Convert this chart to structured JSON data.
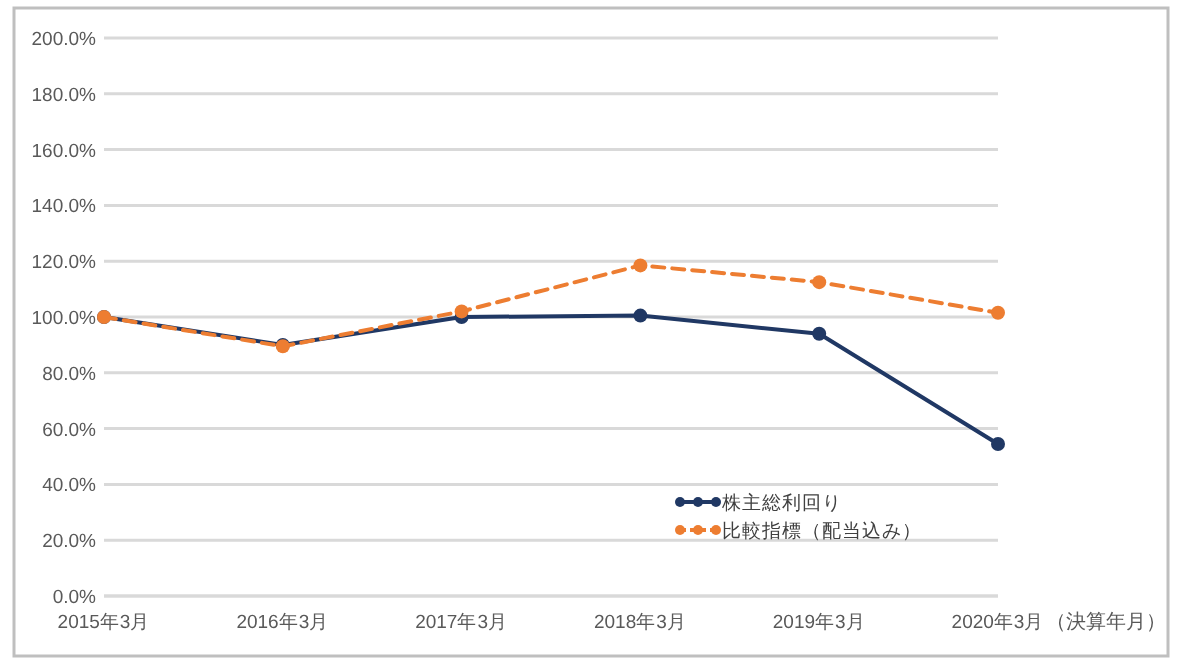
{
  "chart_data": {
    "type": "line",
    "xlabel": "（決算年月）",
    "categories": [
      "2015年3月",
      "2016年3月",
      "2017年3月",
      "2018年3月",
      "2019年3月",
      "2020年3月"
    ],
    "series": [
      {
        "name": "株主総利回り",
        "color": "#203864",
        "values": [
          100,
          90,
          100,
          100.5,
          94,
          54.5
        ],
        "line_style": "solid"
      },
      {
        "name": "比較指標（配当込み）",
        "color": "#ed7d31",
        "values": [
          100,
          89.5,
          102,
          118.5,
          112.5,
          101.5
        ],
        "line_style": "dashed"
      }
    ],
    "ylim": [
      0,
      200
    ],
    "yticks": [
      {
        "value": 0,
        "label": "0.0%"
      },
      {
        "value": 20,
        "label": "20.0%"
      },
      {
        "value": 40,
        "label": "40.0%"
      },
      {
        "value": 60,
        "label": "60.0%"
      },
      {
        "value": 80,
        "label": "80.0%"
      },
      {
        "value": 100,
        "label": "100.0%"
      },
      {
        "value": 120,
        "label": "120.0%"
      },
      {
        "value": 140,
        "label": "140.0%"
      },
      {
        "value": 160,
        "label": "160.0%"
      },
      {
        "value": 180,
        "label": "180.0%"
      },
      {
        "value": 200,
        "label": "200.0%"
      }
    ],
    "grid": "y",
    "legend": "bottom right",
    "marker": "circle"
  }
}
